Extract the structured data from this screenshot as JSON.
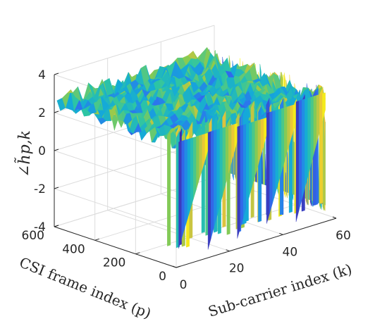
{
  "chart_data": {
    "type": "surface3d",
    "title": "",
    "xlabel": "Sub-carrier index (k)",
    "ylabel": "CSI frame index (p)",
    "zlabel": "∠h̃p,k",
    "xlim": [
      0,
      60
    ],
    "ylim": [
      0,
      600
    ],
    "zlim": [
      -4,
      4
    ],
    "x_ticks": [
      "0",
      "20",
      "40",
      "60"
    ],
    "y_ticks": [
      "0",
      "200",
      "400",
      "600"
    ],
    "z_ticks": [
      "-4",
      "-2",
      "0",
      "2",
      "4"
    ],
    "grid": true,
    "colormap": "parula",
    "colormap_stops": [
      "#3e26a8",
      "#2f6ff0",
      "#14a9d9",
      "#2dc5a4",
      "#8ecb4d",
      "#e8c23a",
      "#f9fb0e"
    ],
    "surface_summary": {
      "x_range": [
        1,
        56
      ],
      "y_range": [
        1,
        600
      ],
      "z_range": [
        -3.14,
        3.14
      ],
      "description": "wrapped phase values, sawtooth pattern along sub-carrier index"
    }
  }
}
